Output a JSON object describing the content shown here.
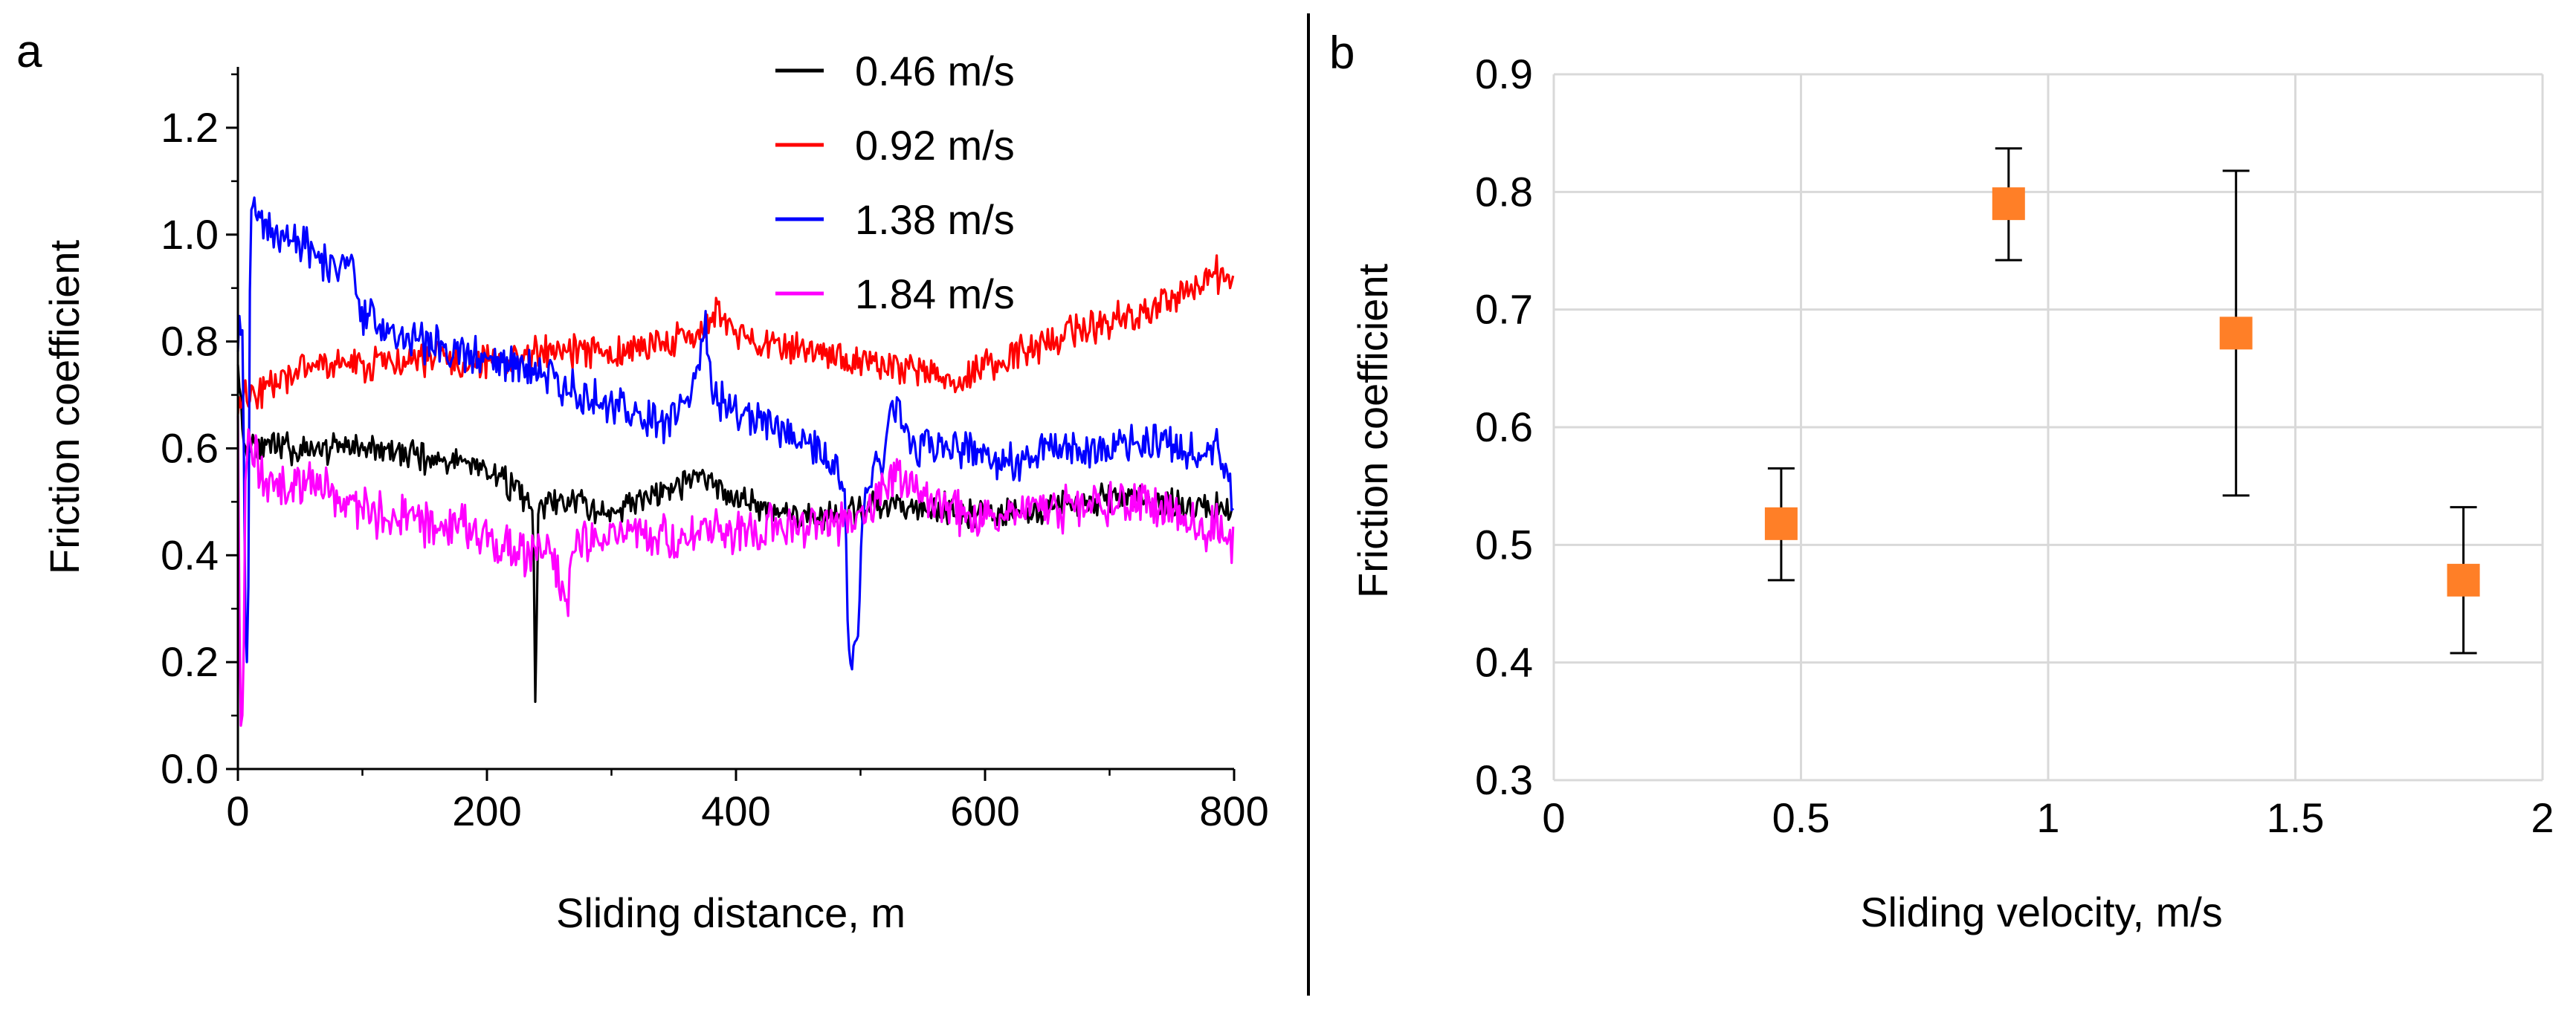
{
  "colors": {
    "black": "#000000",
    "red": "#ff0000",
    "blue": "#0000ff",
    "magenta": "#ff00ff",
    "marker": "#ff7f27",
    "grid": "#d9d9d9",
    "axis": "#000000"
  },
  "chart_data": [
    {
      "panel": "a",
      "type": "line",
      "title": "",
      "xlabel": "Sliding distance, m",
      "ylabel": "Friction coefficient",
      "xlim": [
        0,
        800
      ],
      "ylim": [
        0,
        1.3
      ],
      "xticks": [
        0,
        200,
        400,
        600,
        800
      ],
      "xtick_labels": [
        "0",
        "200",
        "400",
        "600",
        "800"
      ],
      "yticks": [
        0,
        0.2,
        0.4,
        0.6,
        0.8,
        1.0,
        1.2
      ],
      "ytick_labels": [
        "0.0",
        "0.2",
        "0.4",
        "0.6",
        "0.8",
        "1.0",
        "1.2"
      ],
      "grid": false,
      "legend_position": "top-right",
      "series": [
        {
          "name": "0.46 m/s",
          "color": "#000000",
          "noise": 0.022,
          "seed": 11,
          "x": [
            0,
            4,
            8,
            12,
            20,
            40,
            60,
            80,
            100,
            130,
            160,
            190,
            210,
            225,
            237,
            239,
            241,
            243,
            250,
            270,
            290,
            310,
            330,
            350,
            370,
            390,
            410,
            440,
            470,
            500,
            530,
            560,
            590,
            620,
            650,
            680,
            710,
            740,
            770,
            800
          ],
          "y": [
            0.78,
            0.62,
            0.6,
            0.62,
            0.6,
            0.6,
            0.59,
            0.61,
            0.6,
            0.59,
            0.58,
            0.57,
            0.55,
            0.52,
            0.48,
            0.1,
            0.48,
            0.49,
            0.5,
            0.5,
            0.48,
            0.49,
            0.51,
            0.52,
            0.55,
            0.52,
            0.5,
            0.48,
            0.47,
            0.48,
            0.5,
            0.49,
            0.48,
            0.48,
            0.49,
            0.5,
            0.51,
            0.5,
            0.49,
            0.48
          ]
        },
        {
          "name": "0.92 m/s",
          "color": "#ff0000",
          "noise": 0.025,
          "seed": 23,
          "x": [
            0,
            10,
            30,
            60,
            100,
            150,
            200,
            250,
            300,
            350,
            380,
            385,
            390,
            420,
            450,
            480,
            500,
            530,
            560,
            580,
            600,
            630,
            660,
            690,
            720,
            750,
            770,
            780,
            800
          ],
          "y": [
            0.7,
            0.7,
            0.72,
            0.76,
            0.75,
            0.77,
            0.76,
            0.78,
            0.78,
            0.8,
            0.83,
            0.86,
            0.82,
            0.8,
            0.79,
            0.77,
            0.76,
            0.75,
            0.74,
            0.73,
            0.76,
            0.78,
            0.81,
            0.83,
            0.85,
            0.88,
            0.9,
            0.93,
            0.91
          ]
        },
        {
          "name": "1.38 m/s",
          "color": "#0000ff",
          "noise": 0.03,
          "seed": 37,
          "x": [
            0,
            4,
            6,
            8,
            10,
            14,
            20,
            40,
            60,
            80,
            90,
            100,
            120,
            150,
            180,
            210,
            240,
            260,
            280,
            300,
            320,
            340,
            360,
            370,
            375,
            380,
            400,
            430,
            460,
            480,
            488,
            490,
            494,
            498,
            502,
            510,
            520,
            525,
            540,
            570,
            600,
            630,
            660,
            700,
            740,
            770,
            790,
            800
          ],
          "y": [
            0.8,
            0.82,
            0.3,
            0.12,
            1.07,
            1.05,
            1.02,
            1.0,
            0.96,
            0.93,
            0.97,
            0.85,
            0.82,
            0.8,
            0.78,
            0.76,
            0.75,
            0.72,
            0.7,
            0.68,
            0.66,
            0.64,
            0.68,
            0.76,
            0.84,
            0.7,
            0.67,
            0.65,
            0.61,
            0.58,
            0.5,
            0.22,
            0.2,
            0.25,
            0.5,
            0.56,
            0.58,
            0.7,
            0.6,
            0.6,
            0.59,
            0.58,
            0.59,
            0.6,
            0.61,
            0.6,
            0.59,
            0.5
          ]
        },
        {
          "name": "1.84 m/s",
          "color": "#ff00ff",
          "noise": 0.035,
          "seed": 53,
          "x": [
            0,
            2,
            4,
            6,
            8,
            12,
            20,
            40,
            60,
            80,
            100,
            130,
            160,
            190,
            210,
            230,
            250,
            265,
            270,
            290,
            320,
            360,
            400,
            440,
            480,
            500,
            530,
            560,
            600,
            640,
            680,
            720,
            760,
            790,
            800
          ],
          "y": [
            0.68,
            0.1,
            0.08,
            0.55,
            0.63,
            0.6,
            0.55,
            0.52,
            0.55,
            0.5,
            0.48,
            0.47,
            0.46,
            0.45,
            0.42,
            0.4,
            0.41,
            0.32,
            0.42,
            0.43,
            0.44,
            0.44,
            0.45,
            0.45,
            0.46,
            0.47,
            0.55,
            0.5,
            0.47,
            0.48,
            0.5,
            0.5,
            0.48,
            0.44,
            0.42
          ]
        }
      ]
    },
    {
      "panel": "b",
      "type": "scatter",
      "title": "",
      "xlabel": "Sliding velocity, m/s",
      "ylabel": "Friction coefficient",
      "xlim": [
        0,
        2
      ],
      "ylim": [
        0.3,
        0.9
      ],
      "xticks": [
        0,
        0.5,
        1,
        1.5,
        2
      ],
      "xtick_labels": [
        "0",
        "0.5",
        "1",
        "1.5",
        "2"
      ],
      "yticks": [
        0.3,
        0.4,
        0.5,
        0.6,
        0.7,
        0.8,
        0.9
      ],
      "ytick_labels": [
        "0.3",
        "0.4",
        "0.5",
        "0.6",
        "0.7",
        "0.8",
        "0.9"
      ],
      "grid": true,
      "points": [
        {
          "x": 0.46,
          "y": 0.518,
          "y_low": 0.47,
          "y_high": 0.565
        },
        {
          "x": 0.92,
          "y": 0.79,
          "y_low": 0.742,
          "y_high": 0.837
        },
        {
          "x": 1.38,
          "y": 0.68,
          "y_low": 0.542,
          "y_high": 0.818
        },
        {
          "x": 1.84,
          "y": 0.47,
          "y_low": 0.408,
          "y_high": 0.532
        }
      ]
    }
  ],
  "panel_labels": {
    "a": "a",
    "b": "b"
  }
}
